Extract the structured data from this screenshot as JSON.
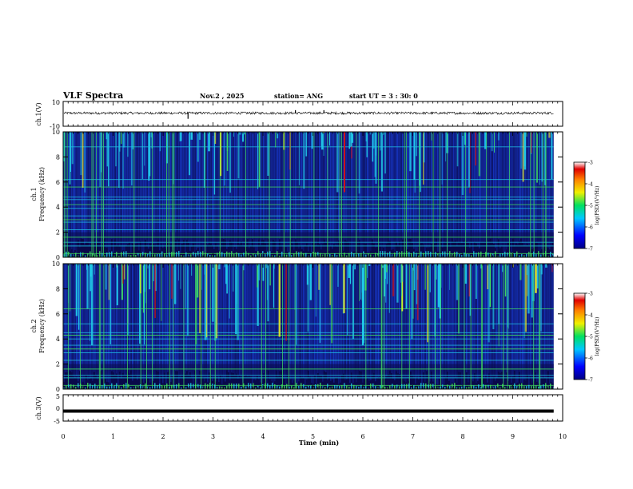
{
  "header": {
    "title": "VLF Spectra",
    "date": "Nov.2 , 2025",
    "station": "station= ANG",
    "start": "start UT = 3 : 30: 0"
  },
  "chart_data": [
    {
      "type": "line",
      "panel": "ch1-waveform",
      "ylabel": "ch.1(V)",
      "ylim": [
        -10,
        10
      ],
      "yticks": [
        "10",
        "-10"
      ],
      "baseline": 0.6,
      "noise_amplitude": 1.0,
      "spikes": [
        {
          "t": 2.5,
          "v": -4
        },
        {
          "t": 4.65,
          "v": 3
        },
        {
          "t": 5.22,
          "v": 3
        }
      ]
    },
    {
      "type": "heatmap",
      "panel": "ch1-spectrogram",
      "ylabel": "ch.1",
      "ylabel2": "Frequency (kHz)",
      "ylim": [
        0,
        10
      ],
      "yticks": [
        "0",
        "2",
        "4",
        "6",
        "8",
        "10"
      ],
      "color_range": [
        -7,
        -3
      ],
      "colorbar_label": "log(PSD)(V²/Hz)",
      "colorbar_ticks": [
        "-3",
        "-4",
        "-5",
        "-6",
        "-7"
      ],
      "band_lines_khz": [
        0.3,
        0.9,
        1.2,
        1.6,
        2.2,
        2.8,
        3.0,
        3.3,
        3.9,
        4.2,
        4.6,
        4.8,
        5.6,
        6.2,
        8.8
      ],
      "intensity": 0.35
    },
    {
      "type": "heatmap",
      "panel": "ch2-spectrogram",
      "ylabel": "ch.2",
      "ylabel2": "Frequency (kHz)",
      "ylim": [
        0,
        10
      ],
      "yticks": [
        "0",
        "2",
        "4",
        "6",
        "8",
        "10"
      ],
      "color_range": [
        -7,
        -3
      ],
      "colorbar_label": "log(PSD)(V²/Hz)",
      "colorbar_ticks": [
        "-3",
        "-4",
        "-5",
        "-6",
        "-7"
      ],
      "band_lines_khz": [
        0.3,
        0.9,
        1.1,
        1.6,
        2.3,
        2.9,
        3.2,
        3.5,
        4.0,
        4.3,
        4.5,
        5.2,
        6.4
      ],
      "intensity": 0.6
    },
    {
      "type": "line",
      "panel": "ch3-waveform",
      "ylabel": "ch.3(V)",
      "ylim": [
        -5,
        5
      ],
      "yticks": [
        "5",
        "0",
        "-5"
      ],
      "baseline": -1.2
    }
  ],
  "x_axis": {
    "label": "Time (min)",
    "xlim": [
      0,
      10
    ],
    "data_end_min": 9.82,
    "ticks": [
      "0",
      "1",
      "2",
      "3",
      "4",
      "5",
      "6",
      "7",
      "8",
      "9",
      "10"
    ]
  },
  "colors": {
    "bg_dark": "#0a0a4a",
    "blue": "#1a40e0",
    "cyan": "#20c8e8",
    "green": "#40e060",
    "yellow": "#f0f020",
    "red": "#e01010"
  }
}
